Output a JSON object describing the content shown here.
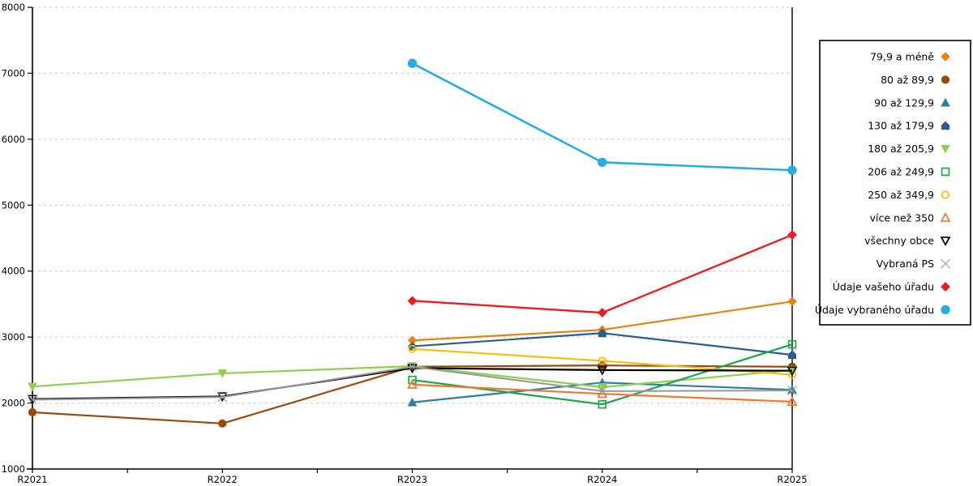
{
  "chart_data": {
    "type": "line",
    "title": "",
    "xlabel": "",
    "ylabel": "",
    "categories": [
      "R2021",
      "R2022",
      "R2023",
      "R2024",
      "R2025"
    ],
    "ylim": [
      1000,
      8000
    ],
    "yticks": [
      1000,
      2000,
      3000,
      4000,
      5000,
      6000,
      7000,
      8000
    ],
    "grid": "horizontal-dashed",
    "grid_color": "#c6c6c6",
    "axis_color": "#000000",
    "legend_position": "right-box",
    "series": [
      {
        "name": "79,9 a méně",
        "color": "#E8820D",
        "marker": "diamond",
        "filled": true,
        "size": 5,
        "width": 2.2,
        "values": [
          null,
          null,
          2950,
          3110,
          3540
        ]
      },
      {
        "name": "80 až 89,9",
        "color": "#9A4A0D",
        "marker": "circle",
        "filled": true,
        "size": 5,
        "width": 2.2,
        "values": [
          1860,
          1690,
          2550,
          2570,
          2550
        ]
      },
      {
        "name": "90 až 129,9",
        "color": "#2E7F9E",
        "marker": "triangle-up",
        "filled": true,
        "size": 5,
        "width": 2.2,
        "values": [
          null,
          null,
          2010,
          2310,
          2200
        ]
      },
      {
        "name": "130 až 179,9",
        "color": "#2F5C8F",
        "marker": "pentagon",
        "filled": true,
        "size": 5,
        "width": 2.2,
        "values": [
          null,
          null,
          2860,
          3060,
          2730
        ]
      },
      {
        "name": "180 až 205,9",
        "color": "#8FD052",
        "marker": "triangle-down",
        "filled": true,
        "size": 5,
        "width": 2.2,
        "values": [
          2250,
          2450,
          2560,
          2240,
          2500
        ]
      },
      {
        "name": "206 až 249,9",
        "color": "#1FA44A",
        "marker": "square",
        "filled": false,
        "size": 5,
        "width": 2.2,
        "values": [
          null,
          null,
          2350,
          1980,
          2890
        ]
      },
      {
        "name": "250 až 349,9",
        "color": "#F2C115",
        "marker": "circle",
        "filled": false,
        "size": 4.6,
        "width": 2.2,
        "values": [
          null,
          null,
          2820,
          2640,
          2430
        ]
      },
      {
        "name": "více než 350",
        "color": "#F07830",
        "marker": "triangle-up",
        "filled": false,
        "size": 5,
        "width": 2.2,
        "values": [
          null,
          null,
          2280,
          2140,
          2020
        ]
      },
      {
        "name": "všechny obce",
        "color": "#000000",
        "marker": "triangle-down",
        "filled": false,
        "size": 5,
        "width": 2.2,
        "values": [
          2060,
          2100,
          2530,
          2500,
          2490
        ]
      },
      {
        "name": "Vybraná PS",
        "color": "#999999",
        "marker": "x",
        "filled": false,
        "size": 5.5,
        "width": 2.0,
        "values": [
          2050,
          2090,
          2550,
          2180,
          2190
        ]
      },
      {
        "name": "Údaje vašeho úřadu",
        "color": "#ED1C24",
        "marker": "diamond",
        "filled": true,
        "size": 5.2,
        "width": 2.4,
        "values": [
          null,
          null,
          3550,
          3370,
          4550
        ]
      },
      {
        "name": "Údaje vybraného úřadu",
        "color": "#29ABE2",
        "marker": "circle",
        "filled": true,
        "size": 5.6,
        "width": 2.6,
        "values": [
          null,
          null,
          7150,
          5650,
          5530
        ]
      }
    ]
  },
  "layout_labels": {
    "y_axis_name": "y-axis",
    "x_axis_name": "x-axis"
  }
}
